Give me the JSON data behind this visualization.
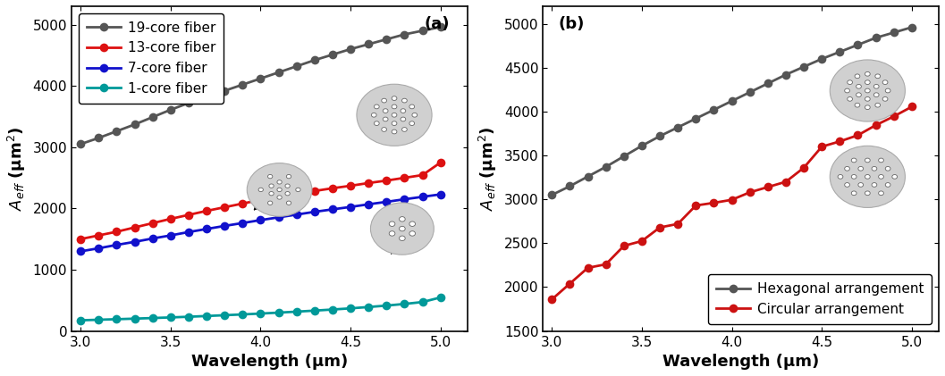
{
  "wavelengths": [
    3.0,
    3.1,
    3.2,
    3.3,
    3.4,
    3.5,
    3.6,
    3.7,
    3.8,
    3.9,
    4.0,
    4.1,
    4.2,
    4.3,
    4.4,
    4.5,
    4.6,
    4.7,
    4.8,
    4.9,
    5.0
  ],
  "panel_a": {
    "core19": [
      3050,
      3150,
      3260,
      3370,
      3490,
      3610,
      3720,
      3820,
      3920,
      4020,
      4120,
      4220,
      4320,
      4420,
      4510,
      4600,
      4680,
      4760,
      4840,
      4900,
      4960
    ],
    "core13": [
      1500,
      1560,
      1620,
      1690,
      1760,
      1830,
      1895,
      1960,
      2020,
      2080,
      2140,
      2195,
      2245,
      2285,
      2330,
      2370,
      2415,
      2455,
      2500,
      2545,
      2750
    ],
    "core7": [
      1300,
      1350,
      1405,
      1455,
      1510,
      1560,
      1615,
      1665,
      1715,
      1762,
      1810,
      1855,
      1900,
      1945,
      1985,
      2025,
      2068,
      2108,
      2150,
      2190,
      2230
    ],
    "core1": [
      175,
      184,
      193,
      202,
      212,
      222,
      233,
      245,
      258,
      271,
      285,
      300,
      316,
      333,
      351,
      370,
      392,
      415,
      442,
      473,
      548
    ]
  },
  "panel_b": {
    "hexagonal": [
      3050,
      3150,
      3260,
      3370,
      3490,
      3610,
      3720,
      3820,
      3920,
      4020,
      4120,
      4220,
      4320,
      4420,
      4510,
      4600,
      4680,
      4760,
      4840,
      4900,
      4960
    ],
    "circular": [
      1860,
      2040,
      2220,
      2260,
      2470,
      2525,
      2680,
      2720,
      2930,
      2960,
      2995,
      3080,
      3140,
      3200,
      3360,
      3600,
      3660,
      3730,
      3845,
      3945,
      4055
    ]
  },
  "colors": {
    "core19": "#555555",
    "core13": "#dd1111",
    "core7": "#1111cc",
    "core1": "#009999",
    "hexagonal": "#555555",
    "circular": "#cc1111"
  },
  "panel_a_ylim": [
    0,
    5300
  ],
  "panel_b_ylim": [
    1500,
    5200
  ],
  "panel_a_yticks": [
    0,
    1000,
    2000,
    3000,
    4000,
    5000
  ],
  "panel_b_yticks": [
    1500,
    2000,
    2500,
    3000,
    3500,
    4000,
    4500,
    5000
  ],
  "xlim": [
    2.95,
    5.15
  ],
  "xticks": [
    3.0,
    3.5,
    4.0,
    4.5,
    5.0
  ],
  "xlabel": "Wavelength (μm)",
  "ylabel": "$A_{eff}$ (μm$^2$)",
  "label_fontsize": 13,
  "tick_fontsize": 11,
  "legend_fontsize": 11,
  "marker_size": 7,
  "linewidth": 2.0,
  "schematic_bg": "#d0d0d0",
  "schematic_edge": "#aaaaaa",
  "schematic_dot_face": "#ffffff",
  "schematic_dot_edge": "#666666"
}
